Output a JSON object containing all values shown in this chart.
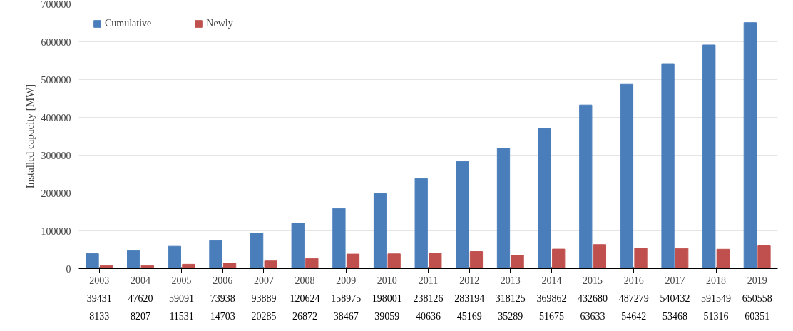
{
  "chart_data": {
    "type": "bar",
    "ylabel": "Installed capacity [MW]",
    "categories": [
      "2003",
      "2004",
      "2005",
      "2006",
      "2007",
      "2008",
      "2009",
      "2010",
      "2011",
      "2012",
      "2013",
      "2014",
      "2015",
      "2016",
      "2017",
      "2018",
      "2019"
    ],
    "series": [
      {
        "name": "Cumulative",
        "color": "#4a7ebb",
        "values": [
          39431,
          47620,
          59091,
          73938,
          93889,
          120624,
          158975,
          198001,
          238126,
          283194,
          318125,
          369862,
          432680,
          487279,
          540432,
          591549,
          650558
        ]
      },
      {
        "name": "Newly",
        "color": "#c0504d",
        "values": [
          8133,
          8207,
          11531,
          14703,
          20285,
          26872,
          38467,
          39059,
          40636,
          45169,
          35289,
          51675,
          63633,
          54642,
          53468,
          51316,
          60351
        ]
      }
    ],
    "ylim": [
      0,
      700000
    ],
    "yticks": [
      0,
      100000,
      200000,
      300000,
      400000,
      500000,
      600000,
      700000
    ],
    "grid": "y",
    "legend": "top left",
    "data_labels": true
  }
}
